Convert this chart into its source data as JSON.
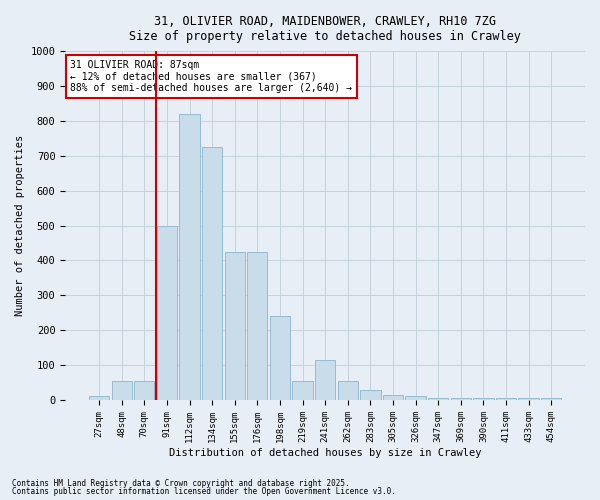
{
  "title_line1": "31, OLIVIER ROAD, MAIDENBOWER, CRAWLEY, RH10 7ZG",
  "title_line2": "Size of property relative to detached houses in Crawley",
  "xlabel": "Distribution of detached houses by size in Crawley",
  "ylabel": "Number of detached properties",
  "categories": [
    "27sqm",
    "48sqm",
    "70sqm",
    "91sqm",
    "112sqm",
    "134sqm",
    "155sqm",
    "176sqm",
    "198sqm",
    "219sqm",
    "241sqm",
    "262sqm",
    "283sqm",
    "305sqm",
    "326sqm",
    "347sqm",
    "369sqm",
    "390sqm",
    "411sqm",
    "433sqm",
    "454sqm"
  ],
  "bar_heights": [
    10,
    55,
    55,
    500,
    820,
    725,
    425,
    425,
    240,
    55,
    115,
    55,
    30,
    15,
    10,
    5,
    5,
    5,
    5,
    5,
    5
  ],
  "vline_index": 3.5,
  "annotation_text": "31 OLIVIER ROAD: 87sqm\n← 12% of detached houses are smaller (367)\n88% of semi-detached houses are larger (2,640) →",
  "bar_color": "#c9dcea",
  "bar_edge_color": "#94bcd4",
  "vline_color": "#cc0000",
  "annotation_box_edge": "#cc0000",
  "annotation_box_face": "#ffffff",
  "grid_color": "#c0cdd8",
  "bg_color": "#e8eef5",
  "footer_line1": "Contains HM Land Registry data © Crown copyright and database right 2025.",
  "footer_line2": "Contains public sector information licensed under the Open Government Licence v3.0.",
  "ylim": [
    0,
    1000
  ],
  "yticks": [
    0,
    100,
    200,
    300,
    400,
    500,
    600,
    700,
    800,
    900,
    1000
  ]
}
